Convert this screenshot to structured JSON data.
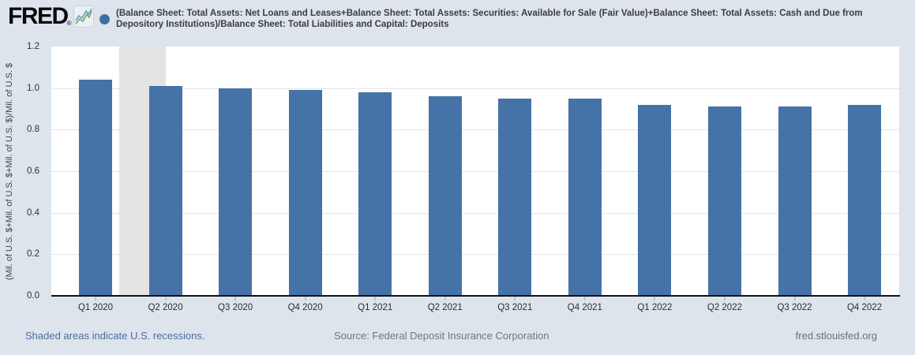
{
  "page": {
    "background": "#dde4ec",
    "brand": {
      "logo_text": "FRED",
      "registered_mark": "®",
      "chart_icon": "line-chart-icon"
    },
    "legend": {
      "marker_color": "#3f6da6"
    },
    "title": "(Balance Sheet: Total Assets: Net Loans and Leases+Balance Sheet: Total Assets: Securities: Available for Sale (Fair Value)+Balance Sheet: Total Assets: Cash and Due from Depository Institutions)/Balance Sheet: Total Liabilities and Capital: Deposits",
    "footer": {
      "recession_note": "Shaded areas indicate U.S. recessions.",
      "source": "Source: Federal Deposit Insurance Corporation",
      "site_link": "fred.stlouisfed.org"
    }
  },
  "chart_data": {
    "type": "bar",
    "categories": [
      "Q1 2020",
      "Q2 2020",
      "Q3 2020",
      "Q4 2020",
      "Q1 2021",
      "Q2 2021",
      "Q3 2021",
      "Q4 2021",
      "Q1 2022",
      "Q2 2022",
      "Q3 2022",
      "Q4 2022"
    ],
    "values": [
      1.04,
      1.01,
      1.0,
      0.99,
      0.98,
      0.96,
      0.95,
      0.95,
      0.92,
      0.91,
      0.91,
      0.92
    ],
    "title": "(Balance Sheet: Total Assets: Net Loans and Leases+Balance Sheet: Total Assets: Securities: Available for Sale (Fair Value)+Balance Sheet: Total Assets: Cash and Due from Depository Institutions)/Balance Sheet: Total Liabilities and Capital: Deposits",
    "xlabel": "",
    "ylabel": "(Mil. of U.S. $+Mil. of U.S. $+Mil. of U.S. $)/Mil. of U.S. $",
    "ylim": [
      0,
      1.2
    ],
    "ytick_step": 0.2,
    "grid": true,
    "legend_position": "none",
    "bar_color": "#4572a7",
    "plot_background": "#ffffff",
    "recession_bands": [
      {
        "label": "U.S. recession",
        "start_frac": 0.0801,
        "end_frac": 0.1346,
        "color": "#e4e4e4"
      }
    ]
  }
}
